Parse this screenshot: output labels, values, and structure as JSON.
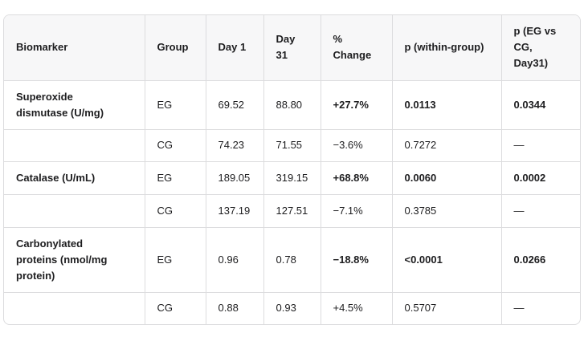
{
  "table": {
    "headers": [
      "Biomarker",
      "Group",
      "Day 1",
      "Day 31",
      "% Change",
      "p (within-group)",
      "p (EG vs CG, Day31)"
    ],
    "rows": [
      [
        "Superoxide dismutase (U/mg)",
        "EG",
        "69.52",
        "88.80",
        "+27.7%",
        "0.0113",
        "0.0344"
      ],
      [
        null,
        "CG",
        "74.23",
        "71.55",
        "−3.6%",
        "0.7272",
        "—"
      ],
      [
        "Catalase (U/mL)",
        "EG",
        "189.05",
        "319.15",
        "+68.8%",
        "0.0060",
        "0.0002"
      ],
      [
        null,
        "CG",
        "137.19",
        "127.51",
        "−7.1%",
        "0.3785",
        "—"
      ],
      [
        "Carbonylated proteins (nmol/mg protein)",
        "EG",
        "0.96",
        "0.78",
        "−18.8%",
        "<0.0001",
        "0.0266"
      ],
      [
        null,
        "CG",
        "0.88",
        "0.93",
        "+4.5%",
        "0.5707",
        "—"
      ]
    ]
  }
}
